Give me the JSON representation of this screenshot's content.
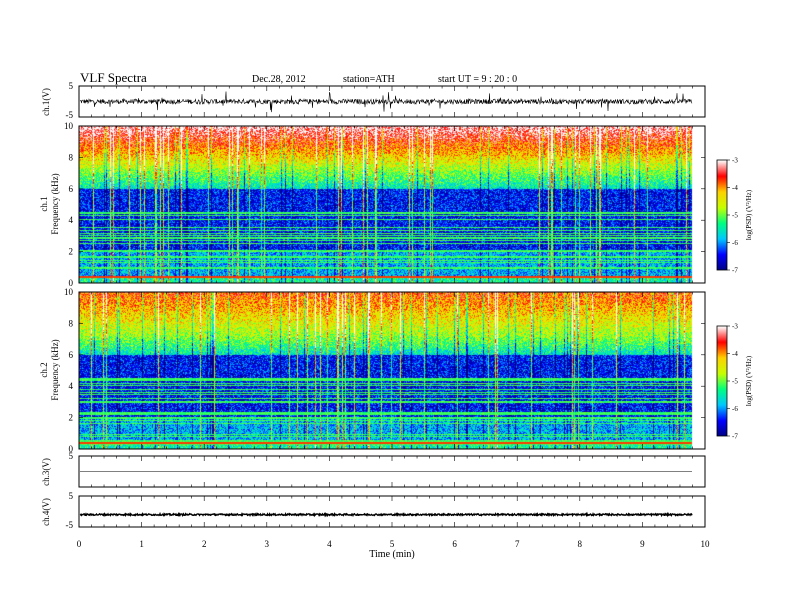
{
  "header": {
    "title": "VLF  Spectra",
    "date": "Dec.28, 2012",
    "station": "station=ATH",
    "start": "start  UT  =   9  : 20 : 0"
  },
  "chart_data": [
    {
      "id": "ch1-waveform",
      "type": "line",
      "ylabel": "ch.1(V)",
      "ylim": [
        -5,
        5
      ],
      "yticks": [
        "5",
        "-5"
      ],
      "xlim": [
        0,
        9.8
      ],
      "baseline": 0,
      "amplitude_typical": 1.0,
      "color": "#000000"
    },
    {
      "id": "ch1-spectrogram",
      "type": "heatmap",
      "ylabel_lines": [
        "ch.1",
        "Frequency  (kHz)"
      ],
      "ylim": [
        0,
        10
      ],
      "yticks": [
        "0",
        "2",
        "4",
        "6",
        "8",
        "10"
      ],
      "colorbar": {
        "label": "log(PSD) (V²/Hz)",
        "range": [
          -7,
          -3
        ],
        "ticks": [
          "-3",
          "-4",
          "-5",
          "-6",
          "-7"
        ]
      }
    },
    {
      "id": "ch2-spectrogram",
      "type": "heatmap",
      "ylabel_lines": [
        "ch.2",
        "Frequency  (kHz)"
      ],
      "ylim": [
        0,
        10
      ],
      "yticks": [
        "0",
        "2",
        "4",
        "6",
        "8",
        "10"
      ],
      "colorbar": {
        "label": "log(PSD) (V²/Hz)",
        "range": [
          -7,
          -3
        ],
        "ticks": [
          "-3",
          "-4",
          "-5",
          "-6",
          "-7"
        ]
      }
    },
    {
      "id": "ch3-waveform",
      "type": "line",
      "ylabel": "ch.3(V)",
      "ylim": [
        -5,
        5
      ],
      "yticks": [
        "5"
      ],
      "baseline": 0,
      "amplitude_typical": 0.05,
      "color": "#000000"
    },
    {
      "id": "ch4-waveform",
      "type": "line",
      "ylabel": "ch.4(V)",
      "ylim": [
        -5,
        5
      ],
      "yticks": [
        "5",
        "-5"
      ],
      "baseline": -1.0,
      "amplitude_typical": 0.5,
      "color": "#000000"
    }
  ],
  "xaxis": {
    "label": "Time  (min)",
    "range": [
      0,
      10
    ],
    "ticks": [
      "0",
      "1",
      "2",
      "3",
      "4",
      "5",
      "6",
      "7",
      "8",
      "9",
      "10"
    ]
  },
  "colors": {
    "scale": [
      "#000080",
      "#0000ff",
      "#00c8ff",
      "#00ff80",
      "#c8ff00",
      "#ffd200",
      "#ff0000",
      "#ffffff"
    ]
  }
}
